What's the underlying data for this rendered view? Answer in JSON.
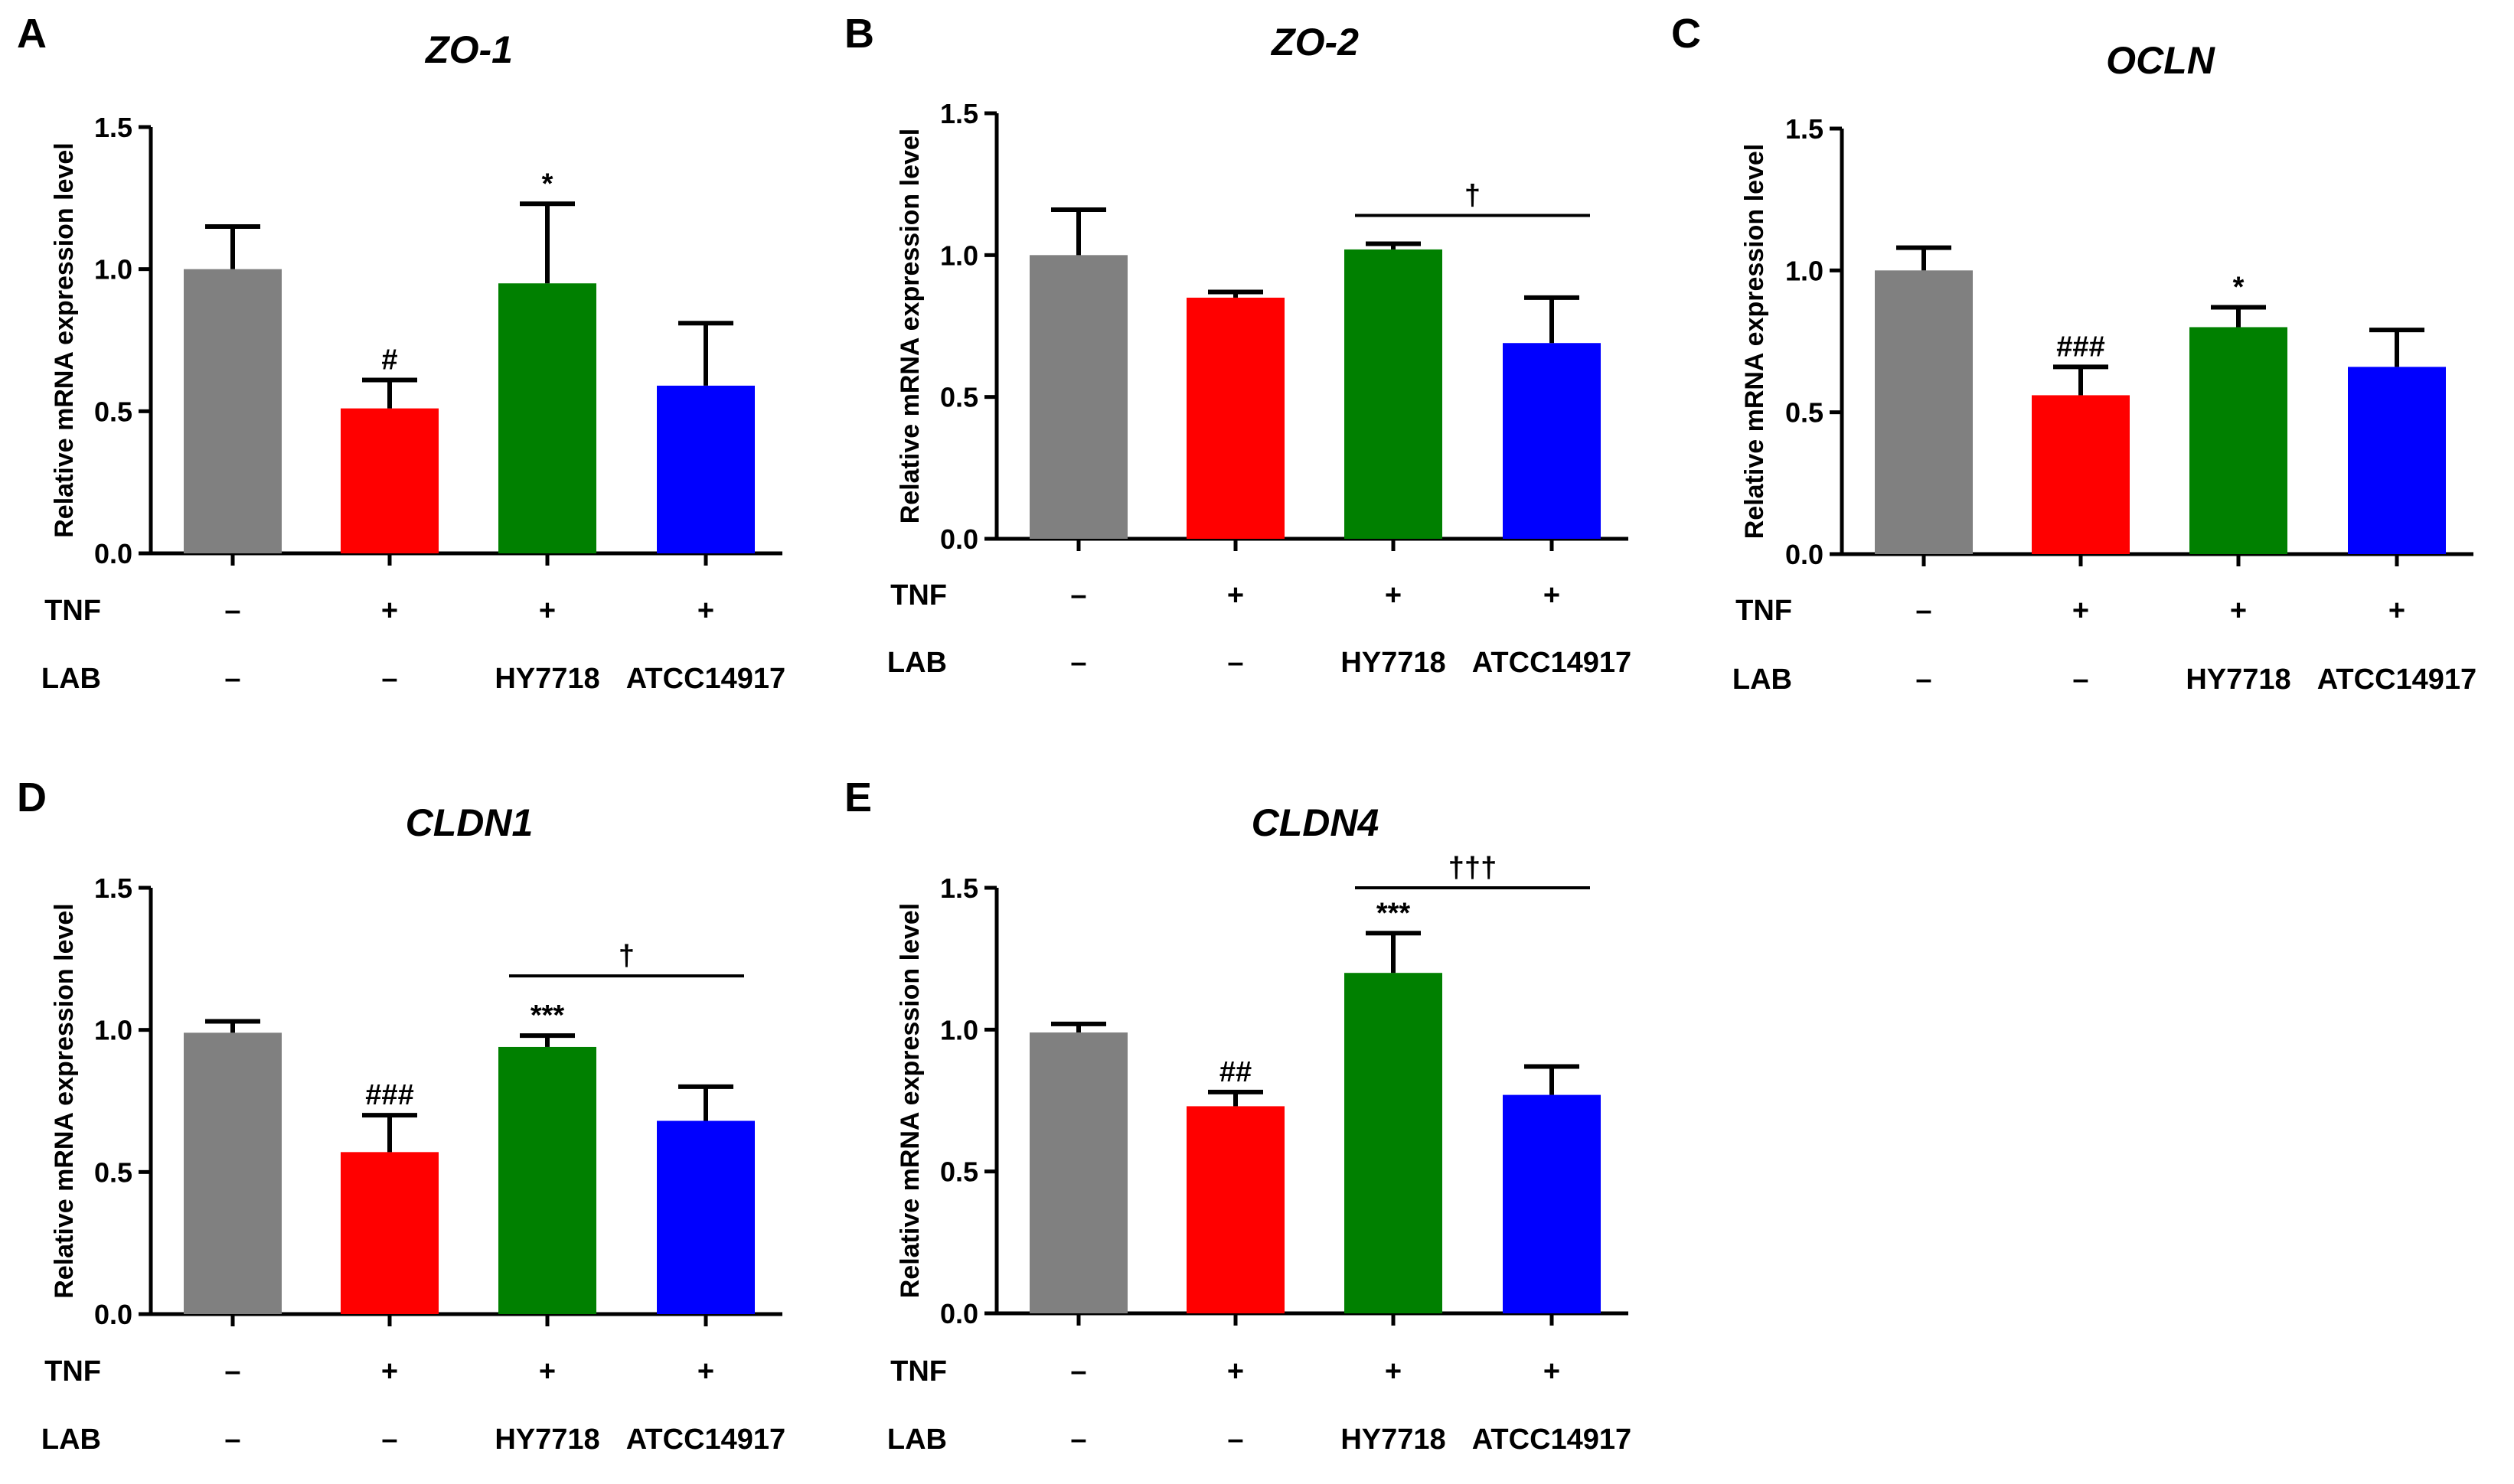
{
  "colors": [
    "#808080",
    "#ff0000",
    "#008000",
    "#0000ff"
  ],
  "groups": [
    {
      "tnf": "–",
      "lab": "–"
    },
    {
      "tnf": "+",
      "lab": "–"
    },
    {
      "tnf": "+",
      "lab": "HY7718"
    },
    {
      "tnf": "+",
      "lab": "ATCC14917"
    }
  ],
  "row_labels": {
    "tnf": "TNF",
    "lab": "LAB"
  },
  "chart_data": [
    {
      "panel": "A",
      "title": "ZO-1",
      "type": "bar",
      "ylabel": "Relative mRNA expression level",
      "ylim": [
        0,
        1.5
      ],
      "yticks": [
        "0.0",
        "0.5",
        "1.0",
        "1.5"
      ],
      "values": [
        1.0,
        0.51,
        0.95,
        0.59
      ],
      "errors": [
        0.15,
        0.1,
        0.28,
        0.22
      ],
      "markers": [
        "",
        "#",
        "*",
        ""
      ],
      "bracket": null
    },
    {
      "panel": "B",
      "title": "ZO-2",
      "type": "bar",
      "ylabel": "Relative mRNA expression level",
      "ylim": [
        0,
        1.5
      ],
      "yticks": [
        "0.0",
        "0.5",
        "1.0",
        "1.5"
      ],
      "values": [
        1.0,
        0.85,
        1.02,
        0.69
      ],
      "errors": [
        0.16,
        0.02,
        0.02,
        0.16
      ],
      "markers": [
        "",
        "",
        "",
        ""
      ],
      "bracket": {
        "from": 2,
        "to": 3,
        "level": 1.14,
        "label": "†"
      }
    },
    {
      "panel": "C",
      "title": "OCLN",
      "type": "bar",
      "ylabel": "Relative mRNA expression level",
      "ylim": [
        0,
        1.5
      ],
      "yticks": [
        "0.0",
        "0.5",
        "1.0",
        "1.5"
      ],
      "values": [
        1.0,
        0.56,
        0.8,
        0.66
      ],
      "errors": [
        0.08,
        0.1,
        0.07,
        0.13
      ],
      "markers": [
        "",
        "###",
        "*",
        ""
      ],
      "bracket": null
    },
    {
      "panel": "D",
      "title": "CLDN1",
      "type": "bar",
      "ylabel": "Relative mRNA expression level",
      "ylim": [
        0,
        1.5
      ],
      "yticks": [
        "0.0",
        "0.5",
        "1.0",
        "1.5"
      ],
      "values": [
        0.99,
        0.57,
        0.94,
        0.68
      ],
      "errors": [
        0.04,
        0.13,
        0.04,
        0.12
      ],
      "markers": [
        "",
        "###",
        "***",
        ""
      ],
      "bracket": {
        "from": 2,
        "to": 3,
        "level": 1.19,
        "label": "†"
      }
    },
    {
      "panel": "E",
      "title": "CLDN4",
      "type": "bar",
      "ylabel": "Relative mRNA expression level",
      "ylim": [
        0,
        1.5
      ],
      "yticks": [
        "0.0",
        "0.5",
        "1.0",
        "1.5"
      ],
      "values": [
        0.99,
        0.73,
        1.2,
        0.77
      ],
      "errors": [
        0.03,
        0.05,
        0.14,
        0.1
      ],
      "markers": [
        "",
        "##",
        "***",
        ""
      ],
      "bracket": {
        "from": 2,
        "to": 3,
        "level": 1.5,
        "label": "†††"
      }
    }
  ]
}
